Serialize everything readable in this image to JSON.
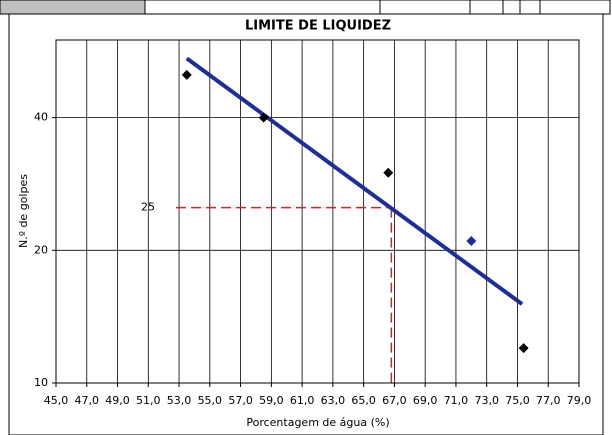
{
  "chart_data": {
    "type": "scatter",
    "title": "LIMITE DE LIQUIDEZ",
    "x_label": "Porcentagem de água (%)",
    "y_label": "N.º de golpes",
    "x": [
      53.5,
      58.5,
      66.6,
      72.0,
      75.4
    ],
    "values": [
      50,
      40,
      30,
      21,
      12
    ],
    "point_colors": [
      "#000000",
      "#000000",
      "#000000",
      "#1f2f8f",
      "#000000"
    ],
    "trendline": {
      "x": [
        53.5,
        75.3
      ],
      "values": [
        54.5,
        15.1
      ],
      "color": "#1f2f8f"
    },
    "reference": {
      "x": 66.8,
      "y": 25,
      "color": "#e02020"
    },
    "xlim": [
      45,
      79
    ],
    "ylim": [
      10,
      60
    ],
    "y_log_scale": true,
    "grid": true,
    "xticks": [
      {
        "value": 45,
        "label": "45,0"
      },
      {
        "value": 47,
        "label": "47,0"
      },
      {
        "value": 49,
        "label": "49,0"
      },
      {
        "value": 51,
        "label": "51,0"
      },
      {
        "value": 53,
        "label": "53,0"
      },
      {
        "value": 55,
        "label": "55,0"
      },
      {
        "value": 57,
        "label": "57,0"
      },
      {
        "value": 59,
        "label": "59,0"
      },
      {
        "value": 61,
        "label": "61,0"
      },
      {
        "value": 63,
        "label": "63,0"
      },
      {
        "value": 65,
        "label": "65,0"
      },
      {
        "value": 67,
        "label": "67,0"
      },
      {
        "value": 69,
        "label": "69,0"
      },
      {
        "value": 71,
        "label": "71,0"
      },
      {
        "value": 73,
        "label": "73,0"
      },
      {
        "value": 75,
        "label": "75,0"
      },
      {
        "value": 77,
        "label": "77,0"
      },
      {
        "value": 79,
        "label": "79,0"
      }
    ],
    "yticks": [
      10,
      20,
      40
    ]
  }
}
